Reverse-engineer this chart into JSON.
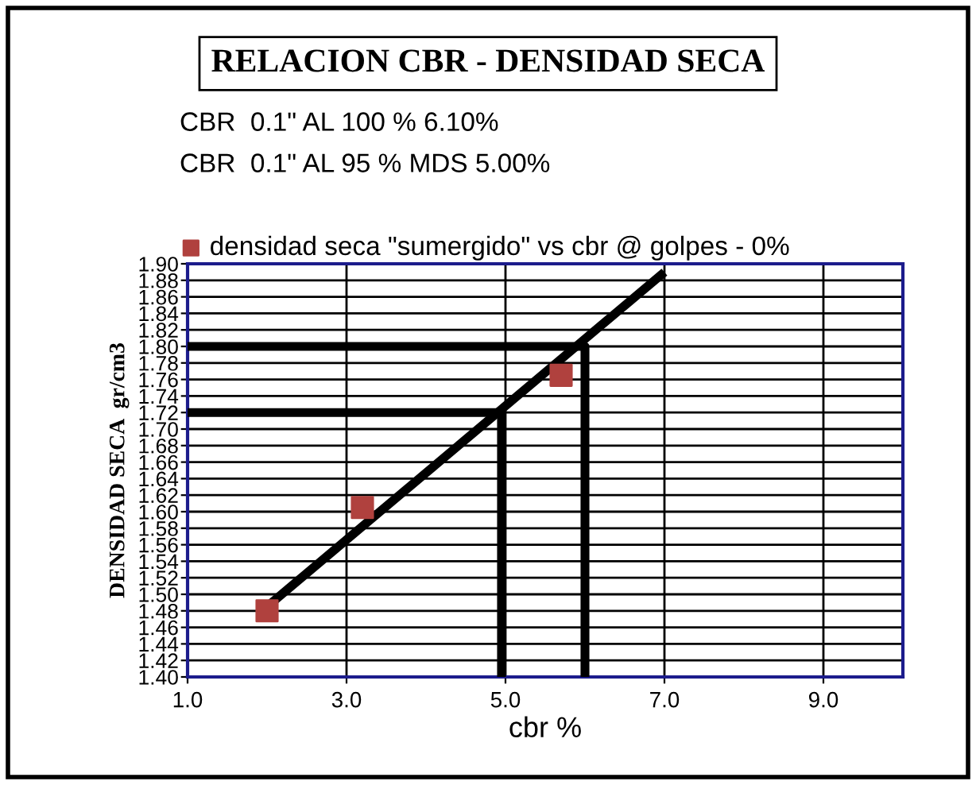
{
  "chart_data": {
    "type": "scatter",
    "title": "RELACION CBR - DENSIDAD SECA",
    "xlabel": "cbr %",
    "ylabel": "DENSIDAD SECA  gr/cm3",
    "annotations": [
      "CBR  0.1\" AL 100 % 6.10%",
      "CBR  0.1\" AL 95 % MDS 5.00%"
    ],
    "series": [
      {
        "name": "densidad seca \"sumergido\" vs cbr @ golpes - 0%",
        "color": "#b0413e",
        "marker": "square",
        "x": [
          2.0,
          3.2,
          5.7
        ],
        "values": [
          1.48,
          1.605,
          1.765
        ]
      },
      {
        "type": "line",
        "color": "#000000",
        "marker": "none",
        "x": [
          2.0,
          7.0
        ],
        "values": [
          1.485,
          1.89
        ]
      },
      {
        "type": "line",
        "color": "#000000",
        "marker": "none",
        "x": [
          1.0,
          6.0,
          6.0
        ],
        "values": [
          1.8,
          1.8,
          1.4
        ]
      },
      {
        "type": "line",
        "color": "#000000",
        "marker": "none",
        "x": [
          1.0,
          4.95,
          4.95
        ],
        "values": [
          1.72,
          1.72,
          1.4
        ]
      }
    ],
    "xlim": [
      1.0,
      10.0
    ],
    "xticks": [
      {
        "value": 1,
        "label": "1.0"
      },
      {
        "value": 3,
        "label": "3.0"
      },
      {
        "value": 5,
        "label": "5.0"
      },
      {
        "value": 7,
        "label": "7.0"
      },
      {
        "value": 9,
        "label": "9.0"
      }
    ],
    "ylim": [
      1.4,
      1.9
    ],
    "yticks": [
      {
        "value": 1.4,
        "label": "1.40"
      },
      {
        "value": 1.42,
        "label": "1.42"
      },
      {
        "value": 1.44,
        "label": "1.44"
      },
      {
        "value": 1.46,
        "label": "1.46"
      },
      {
        "value": 1.48,
        "label": "1.48"
      },
      {
        "value": 1.5,
        "label": "1.50"
      },
      {
        "value": 1.52,
        "label": "1.52"
      },
      {
        "value": 1.54,
        "label": "1.54"
      },
      {
        "value": 1.56,
        "label": "1.56"
      },
      {
        "value": 1.58,
        "label": "1.58"
      },
      {
        "value": 1.6,
        "label": "1.60"
      },
      {
        "value": 1.62,
        "label": "1.62"
      },
      {
        "value": 1.64,
        "label": "1.64"
      },
      {
        "value": 1.66,
        "label": "1.66"
      },
      {
        "value": 1.68,
        "label": "1.68"
      },
      {
        "value": 1.7,
        "label": "1.70"
      },
      {
        "value": 1.72,
        "label": "1.72"
      },
      {
        "value": 1.74,
        "label": "1.74"
      },
      {
        "value": 1.76,
        "label": "1.76"
      },
      {
        "value": 1.78,
        "label": "1.78"
      },
      {
        "value": 1.8,
        "label": "1.80"
      },
      {
        "value": 1.82,
        "label": "1.82"
      },
      {
        "value": 1.84,
        "label": "1.84"
      },
      {
        "value": 1.86,
        "label": "1.86"
      },
      {
        "value": 1.88,
        "label": "1.88"
      },
      {
        "value": 1.9,
        "label": "1.90"
      }
    ],
    "grid": true,
    "legend": "top"
  }
}
